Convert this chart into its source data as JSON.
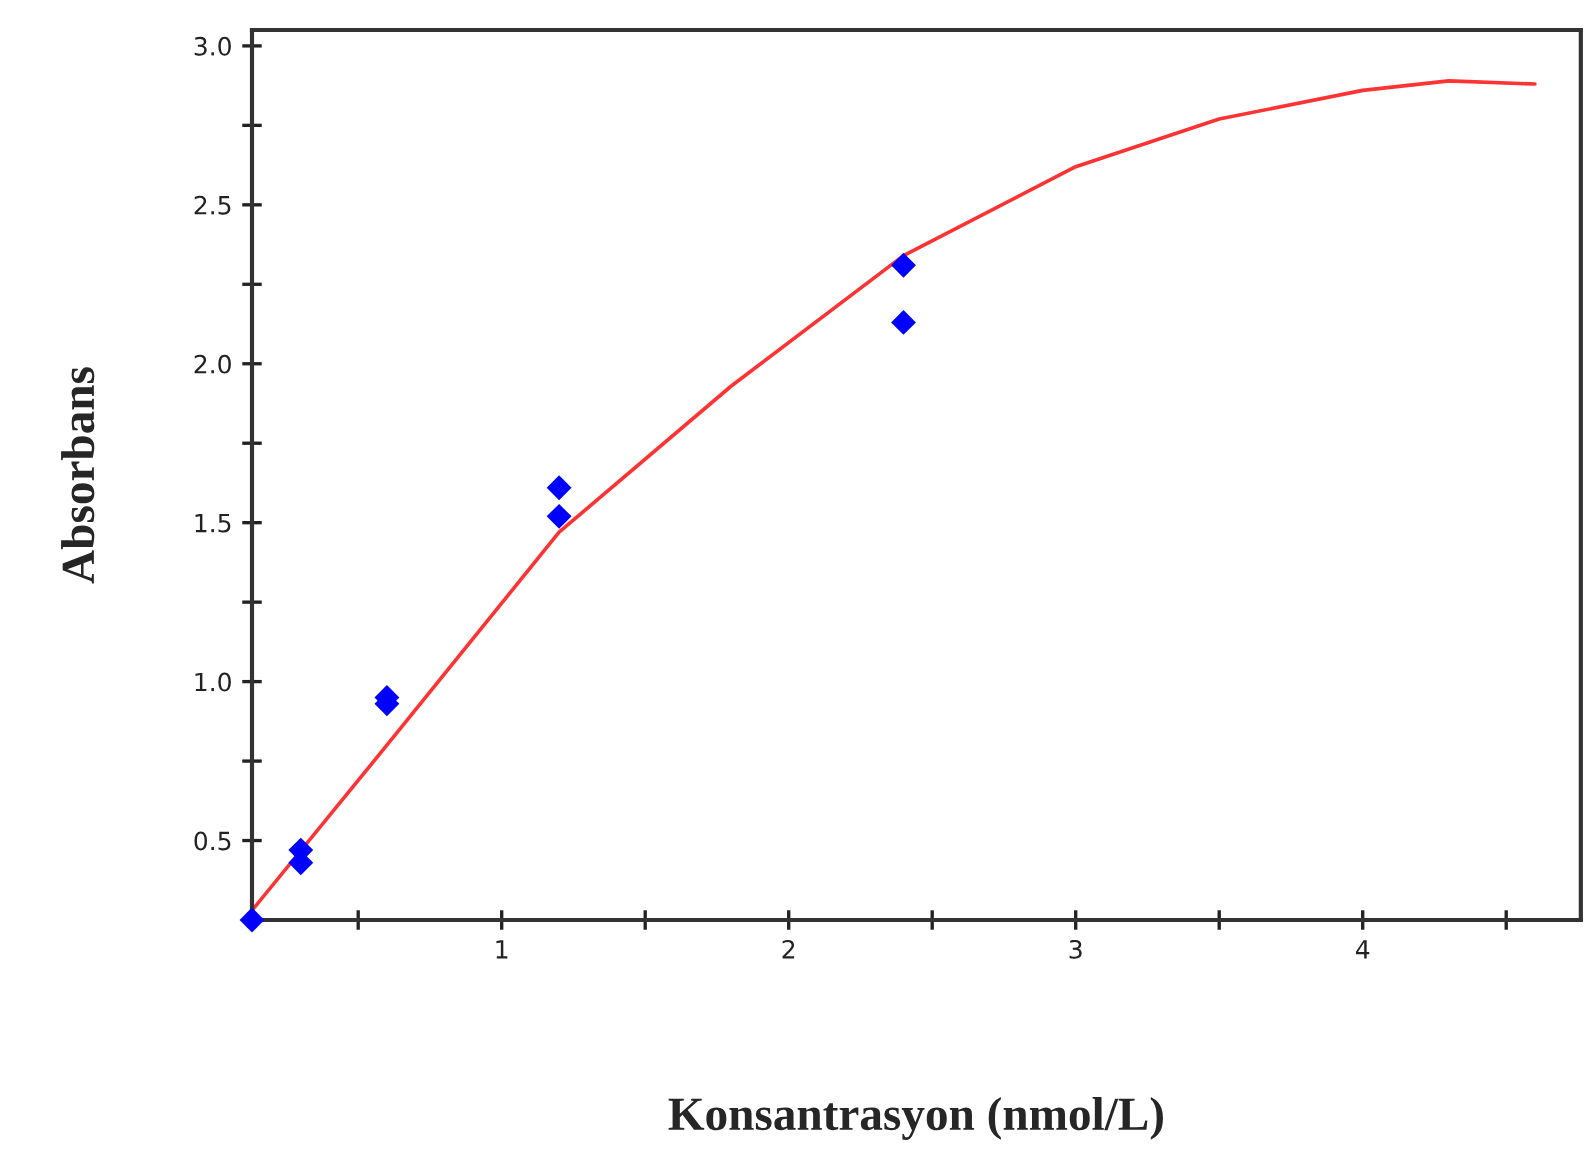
{
  "chart_data": {
    "type": "scatter",
    "xlabel": "Konsantrasyon (nmol/L)",
    "ylabel": "Absorbans",
    "xlim": [
      0.13,
      4.76
    ],
    "ylim": [
      0.25,
      3.05
    ],
    "xticks": [
      {
        "value": 0.5,
        "label": null
      },
      1,
      {
        "value": 1.5,
        "label": null
      },
      2,
      {
        "value": 2.5,
        "label": null
      },
      3,
      {
        "value": 3.5,
        "label": null
      },
      4,
      {
        "value": 4.5,
        "label": null
      }
    ],
    "yticks": [
      0.5,
      {
        "value": 0.75,
        "label": null
      },
      {
        "value": 1,
        "label": "1.0"
      },
      {
        "value": 1.25,
        "label": null
      },
      1.5,
      {
        "value": 1.75,
        "label": null
      },
      {
        "value": 2,
        "label": "2.0"
      },
      {
        "value": 2.25,
        "label": null
      },
      2.5,
      {
        "value": 2.75,
        "label": null
      },
      {
        "value": 3,
        "label": "3.0"
      }
    ],
    "grid": false,
    "legend": false,
    "series": [
      {
        "type": "line",
        "color": "#ff3333",
        "marker": "none",
        "line_style": "solid",
        "x": [
          0.13,
          0.6,
          1.2,
          1.8,
          2.4,
          3.0,
          3.5,
          4.0,
          4.3,
          4.6
        ],
        "values": [
          0.28,
          0.8,
          1.47,
          1.93,
          2.34,
          2.62,
          2.77,
          2.86,
          2.89,
          2.88
        ]
      },
      {
        "color": "#0000ff",
        "marker": "diamond",
        "x": [
          0.13,
          0.3,
          0.3,
          0.6,
          0.6,
          1.2,
          1.2,
          2.4,
          2.4
        ],
        "values": [
          0.25,
          0.47,
          0.43,
          0.95,
          0.93,
          1.61,
          1.52,
          2.31,
          2.13
        ]
      }
    ]
  }
}
